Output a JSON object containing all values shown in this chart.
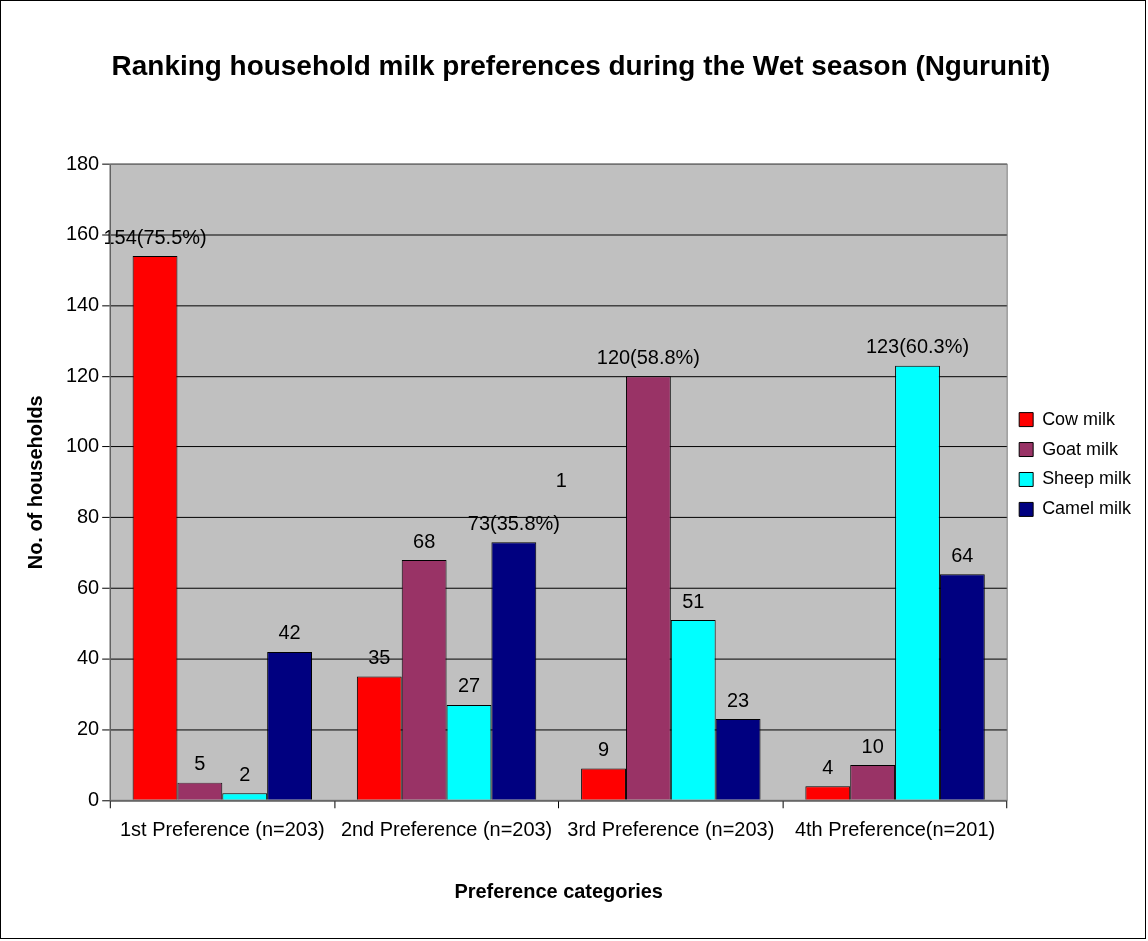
{
  "chart_data": {
    "type": "bar",
    "title": "Ranking household milk preferences during the Wet season (Ngurunit)",
    "xlabel": "Preference categories",
    "ylabel": "No. of households",
    "categories": [
      "1st Preference (n=203)",
      "2nd Preference (n=203)",
      "3rd Preference (n=203)",
      "4th Preference(n=201)"
    ],
    "series": [
      {
        "name": "Cow milk",
        "color": "#ff0000",
        "values": [
          154,
          35,
          9,
          4
        ],
        "value_labels": [
          "154(75.5%)",
          "35",
          "9",
          "4"
        ]
      },
      {
        "name": "Goat milk",
        "color": "#993366",
        "values": [
          5,
          68,
          120,
          10
        ],
        "value_labels": [
          "5",
          "68",
          "120(58.8%)",
          "10"
        ]
      },
      {
        "name": "Sheep milk",
        "color": "#00ffff",
        "values": [
          2,
          27,
          51,
          123
        ],
        "value_labels": [
          "2",
          "27",
          "51",
          "123(60.3%)"
        ]
      },
      {
        "name": "Camel milk",
        "color": "#000080",
        "values": [
          42,
          73,
          23,
          64
        ],
        "value_labels": [
          "42",
          "73(35.8%)",
          "23",
          "64"
        ]
      }
    ],
    "annotations": [
      "1"
    ],
    "ylim": [
      0,
      180
    ],
    "yticks": [
      0,
      20,
      40,
      60,
      80,
      100,
      120,
      140,
      160,
      180
    ],
    "grid": "y",
    "legend": "right"
  }
}
